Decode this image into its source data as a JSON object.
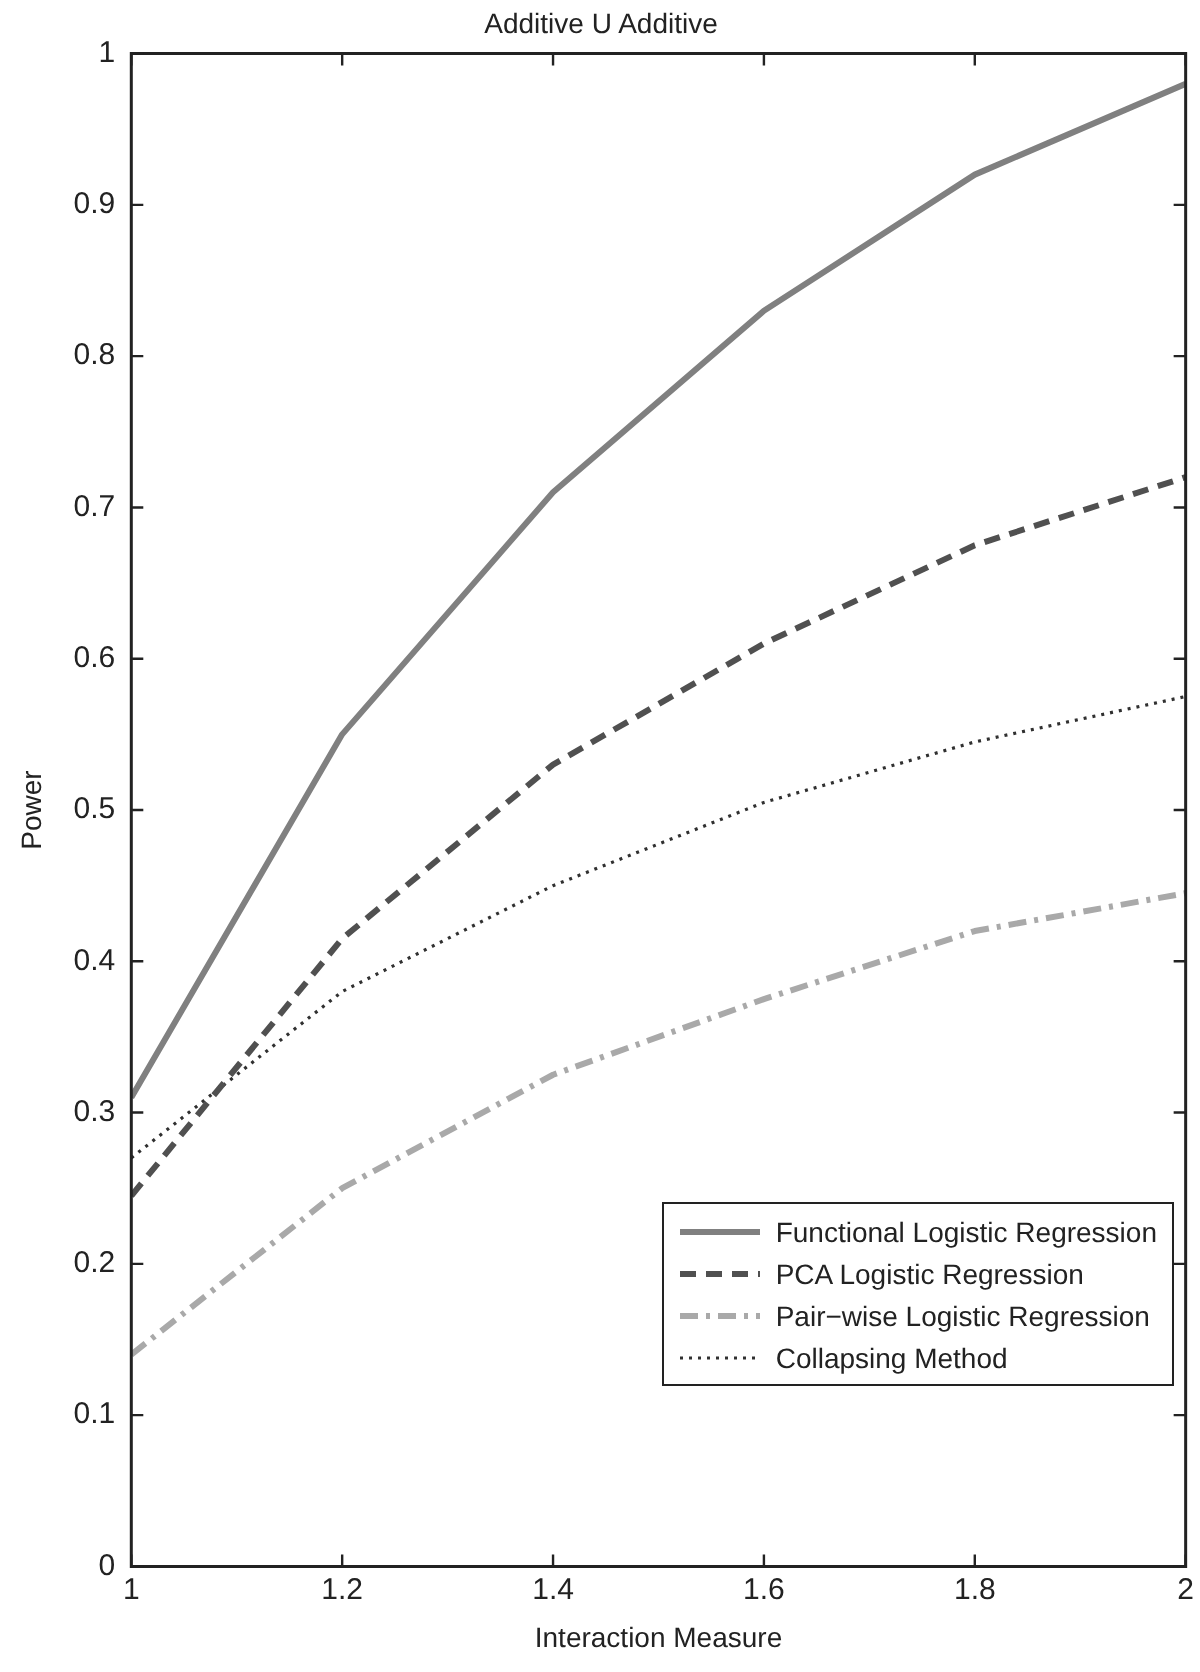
{
  "chart_data": {
    "type": "line",
    "title": "Additive U Additive",
    "xlabel": "Interaction Measure",
    "ylabel": "Power",
    "x": [
      1,
      1.2,
      1.4,
      1.6,
      1.8,
      2
    ],
    "series": [
      {
        "name": "Functional Logistic Regression",
        "color": "#808080",
        "line_style": "solid",
        "values": [
          0.31,
          0.55,
          0.71,
          0.83,
          0.92,
          0.98
        ]
      },
      {
        "name": "PCA Logistic Regression",
        "color": "#505050",
        "line_style": "dashed",
        "values": [
          0.245,
          0.415,
          0.53,
          0.61,
          0.675,
          0.72
        ]
      },
      {
        "name": "Pair−wise Logistic Regression",
        "color": "#a9a9a9",
        "line_style": "dashdot",
        "values": [
          0.14,
          0.25,
          0.325,
          0.375,
          0.42,
          0.445
        ]
      },
      {
        "name": "Collapsing Method",
        "color": "#303030",
        "line_style": "dotted",
        "values": [
          0.27,
          0.38,
          0.45,
          0.505,
          0.545,
          0.575
        ]
      }
    ],
    "xlim": [
      1,
      2
    ],
    "xticks": [
      1,
      1.2,
      1.4,
      1.6,
      1.8,
      2
    ],
    "ylim": [
      0,
      1
    ],
    "yticks": [
      0,
      0.1,
      0.2,
      0.3,
      0.4,
      0.5,
      0.6,
      0.7,
      0.8,
      0.9,
      1
    ],
    "grid": false,
    "legend": "bottom right",
    "marker": "none"
  }
}
